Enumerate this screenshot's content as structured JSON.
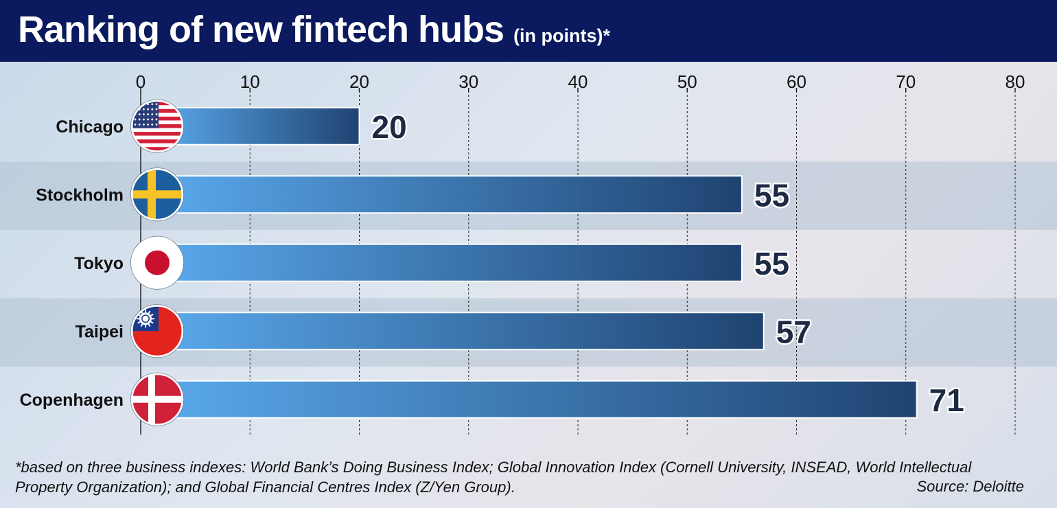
{
  "header": {
    "title": "Ranking of new fintech hubs",
    "subtitle": "(in points)*"
  },
  "chart_data": {
    "type": "bar",
    "orientation": "horizontal",
    "categories": [
      "Chicago",
      "Stockholm",
      "Tokyo",
      "Taipei",
      "Copenhagen"
    ],
    "values": [
      20,
      55,
      55,
      57,
      71
    ],
    "xlim": [
      0,
      80
    ],
    "xticks": [
      0,
      10,
      20,
      30,
      40,
      50,
      60,
      70,
      80
    ],
    "grid": true,
    "axis_position": "top",
    "flags": [
      "usa-flag-icon",
      "sweden-flag-icon",
      "japan-flag-icon",
      "taiwan-flag-icon",
      "denmark-flag-icon"
    ],
    "colors": {
      "bar_light": "#5aa9ec",
      "bar_dark": "#1f4371",
      "band": "#b3c2d4"
    }
  },
  "footer": {
    "note": "*based on three business indexes: World Bank’s Doing Business Index; Global Innovation Index (Cornell University, INSEAD, World Intellectual Property Organization); and Global Financial Centres Index (Z/Yen Group).",
    "source": "Source: Deloitte"
  }
}
